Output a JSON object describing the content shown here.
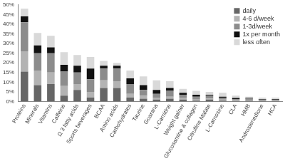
{
  "chart_data": {
    "type": "bar",
    "stacked": true,
    "grid": false,
    "legend": "upper right",
    "categories": [
      "Proteins",
      "Minerals",
      "Vitamins",
      "Caffeine",
      "Ω 3 fatty acids",
      "Sports beverages",
      "BCAA",
      "Amino acids",
      "Carbohydrates",
      "Taurine",
      "Guarana",
      "L-Carnitine",
      "Weight gainer",
      "Glucosamine & collagen",
      "Citrulline Malate",
      "L-Carnosine",
      "CLA",
      "HMB",
      "Androstenedione",
      "HCA"
    ],
    "series": [
      {
        "name": "daily",
        "color": "#666666",
        "values": [
          15.5,
          8.5,
          9,
          3,
          6,
          2,
          7,
          7,
          2,
          1.5,
          1,
          1.5,
          1,
          0.5,
          1,
          0.5,
          0.3,
          0.5,
          0.3,
          0.2
        ]
      },
      {
        "name": "4-6 d/week",
        "color": "#b3b3b3",
        "values": [
          10.5,
          7.5,
          6,
          5,
          3,
          3,
          4,
          3.5,
          2,
          1.5,
          1,
          1,
          1,
          0.5,
          0.5,
          0.5,
          0.3,
          0.3,
          0.2,
          0.2
        ]
      },
      {
        "name": "1-3d/week",
        "color": "#8c8c8c",
        "values": [
          15,
          9,
          10,
          7.5,
          6,
          6.5,
          6,
          6.5,
          5,
          3,
          2,
          3,
          1.5,
          1.5,
          1.5,
          1,
          0.7,
          0.7,
          0.5,
          0.5
        ]
      },
      {
        "name": "1x per month",
        "color": "#111111",
        "values": [
          3,
          4,
          3,
          3.5,
          3.5,
          5.5,
          1.5,
          1.5,
          3,
          2.5,
          2,
          1.5,
          1,
          1,
          0.5,
          0.5,
          0.5,
          0.3,
          0.3,
          0.3
        ]
      },
      {
        "name": "less often",
        "color": "#d9d9d9",
        "values": [
          4,
          6.5,
          6,
          6.5,
          5.5,
          6,
          2.5,
          1.5,
          4,
          4.5,
          5,
          3.5,
          2,
          2,
          1.5,
          2,
          1.2,
          0.7,
          0.7,
          0.8
        ]
      }
    ],
    "ylim": [
      0,
      50
    ],
    "yticks": [
      {
        "value": 0,
        "label": "0%"
      },
      {
        "value": 5,
        "label": "5%"
      },
      {
        "value": 10,
        "label": "10%"
      },
      {
        "value": 15,
        "label": "15%"
      },
      {
        "value": 20,
        "label": "20%"
      },
      {
        "value": 25,
        "label": "25%"
      },
      {
        "value": 30,
        "label": "30%"
      },
      {
        "value": 35,
        "label": "35%"
      },
      {
        "value": 40,
        "label": "40%"
      },
      {
        "value": 45,
        "label": "45%"
      },
      {
        "value": 50,
        "label": "50%"
      }
    ]
  }
}
